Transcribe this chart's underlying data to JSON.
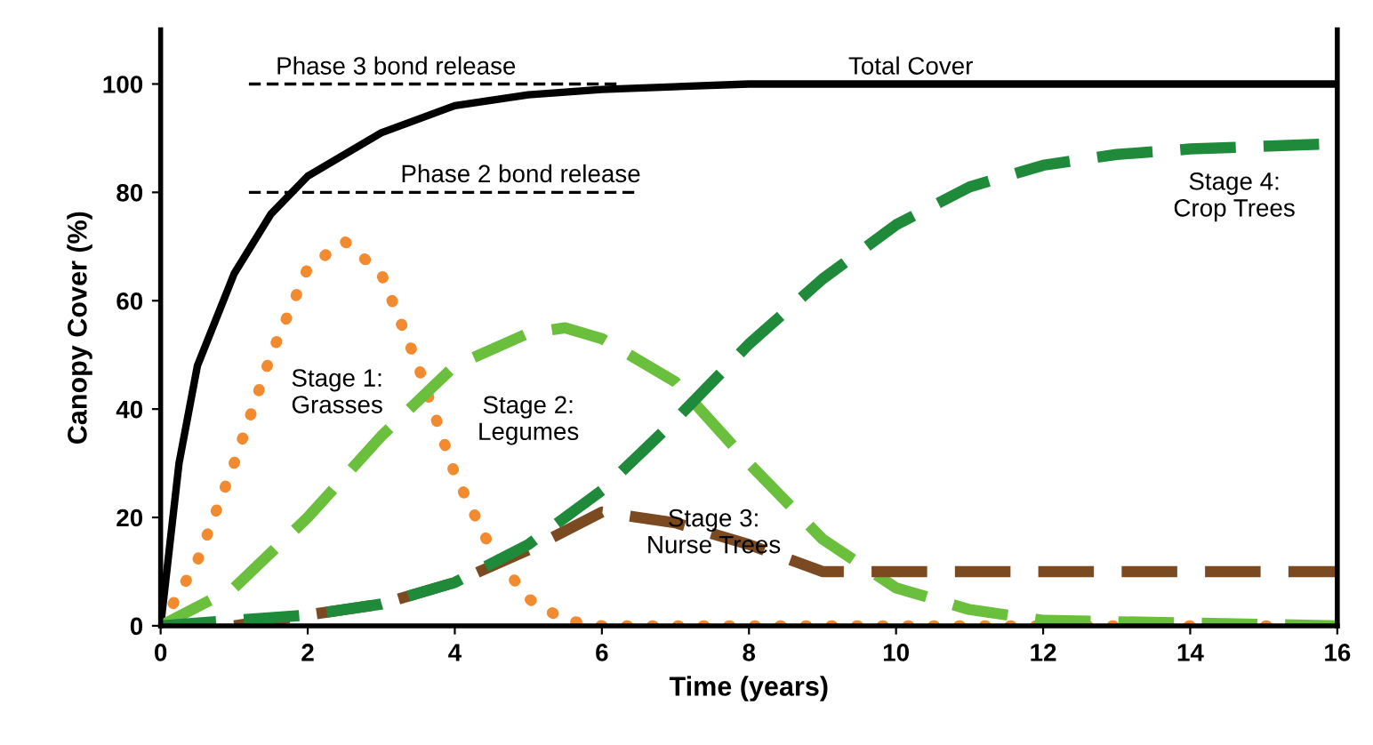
{
  "chart_data": {
    "type": "line",
    "xlabel": "Time (years)",
    "ylabel": "Canopy Cover (%)",
    "xlim": [
      0,
      16
    ],
    "ylim": [
      0,
      110
    ],
    "xticks": [
      0,
      2,
      4,
      6,
      8,
      10,
      12,
      14,
      16
    ],
    "yticks": [
      0,
      20,
      40,
      60,
      80,
      100
    ],
    "grid": false,
    "marker": "none",
    "series": [
      {
        "color": "#000000",
        "line_style": "solid",
        "x": [
          0,
          0.25,
          0.5,
          1,
          1.5,
          2,
          3,
          4,
          5,
          6,
          8,
          16
        ],
        "values": [
          0,
          30,
          48,
          65,
          76,
          83,
          91,
          96,
          98,
          99,
          100,
          100
        ]
      },
      {
        "color": "#f28a30",
        "line_style": "dotted",
        "x": [
          0,
          0.5,
          1,
          1.5,
          2,
          2.5,
          3,
          3.5,
          4,
          4.5,
          5,
          5.5,
          6,
          16
        ],
        "values": [
          0,
          12,
          30,
          50,
          66,
          71,
          65,
          48,
          28,
          14,
          5,
          1,
          0,
          0
        ]
      },
      {
        "color": "#6abf3c",
        "line_style": "dashed",
        "x": [
          0,
          1,
          2,
          3,
          4,
          5,
          5.5,
          6,
          7,
          8,
          9,
          10,
          11,
          12,
          16
        ],
        "values": [
          0,
          7,
          20,
          35,
          48,
          54,
          55,
          53,
          45,
          30,
          16,
          7,
          3,
          1,
          0
        ]
      },
      {
        "color": "#7b4a21",
        "line_style": "dashed",
        "x": [
          1,
          2,
          3,
          4,
          5,
          6,
          7,
          8,
          9,
          10,
          16
        ],
        "values": [
          0,
          2,
          4,
          8,
          14,
          21,
          19,
          15,
          10,
          10,
          10
        ]
      },
      {
        "color": "#1f8a3a",
        "line_style": "dashed",
        "x": [
          0,
          2,
          3,
          4,
          5,
          6,
          7,
          8,
          9,
          10,
          11,
          12,
          13,
          14,
          16
        ],
        "values": [
          0,
          2,
          4,
          8,
          15,
          25,
          38,
          52,
          64,
          74,
          81,
          85,
          87,
          88,
          89
        ]
      },
      {
        "color": "#000000",
        "line_style": "dashed",
        "x": [
          1.2,
          6.2
        ],
        "values": [
          100,
          100
        ]
      },
      {
        "color": "#000000",
        "line_style": "dashed",
        "x": [
          1.2,
          6.5
        ],
        "values": [
          80,
          80
        ]
      }
    ],
    "annotations": [
      "Total Cover",
      "Phase 3 bond release",
      "Phase 2 bond release",
      "Stage 1:\nGrasses",
      "Stage 2:\nLegumes",
      "Stage 3:\nNurse Trees",
      "Stage 4:\nCrop Trees"
    ]
  }
}
